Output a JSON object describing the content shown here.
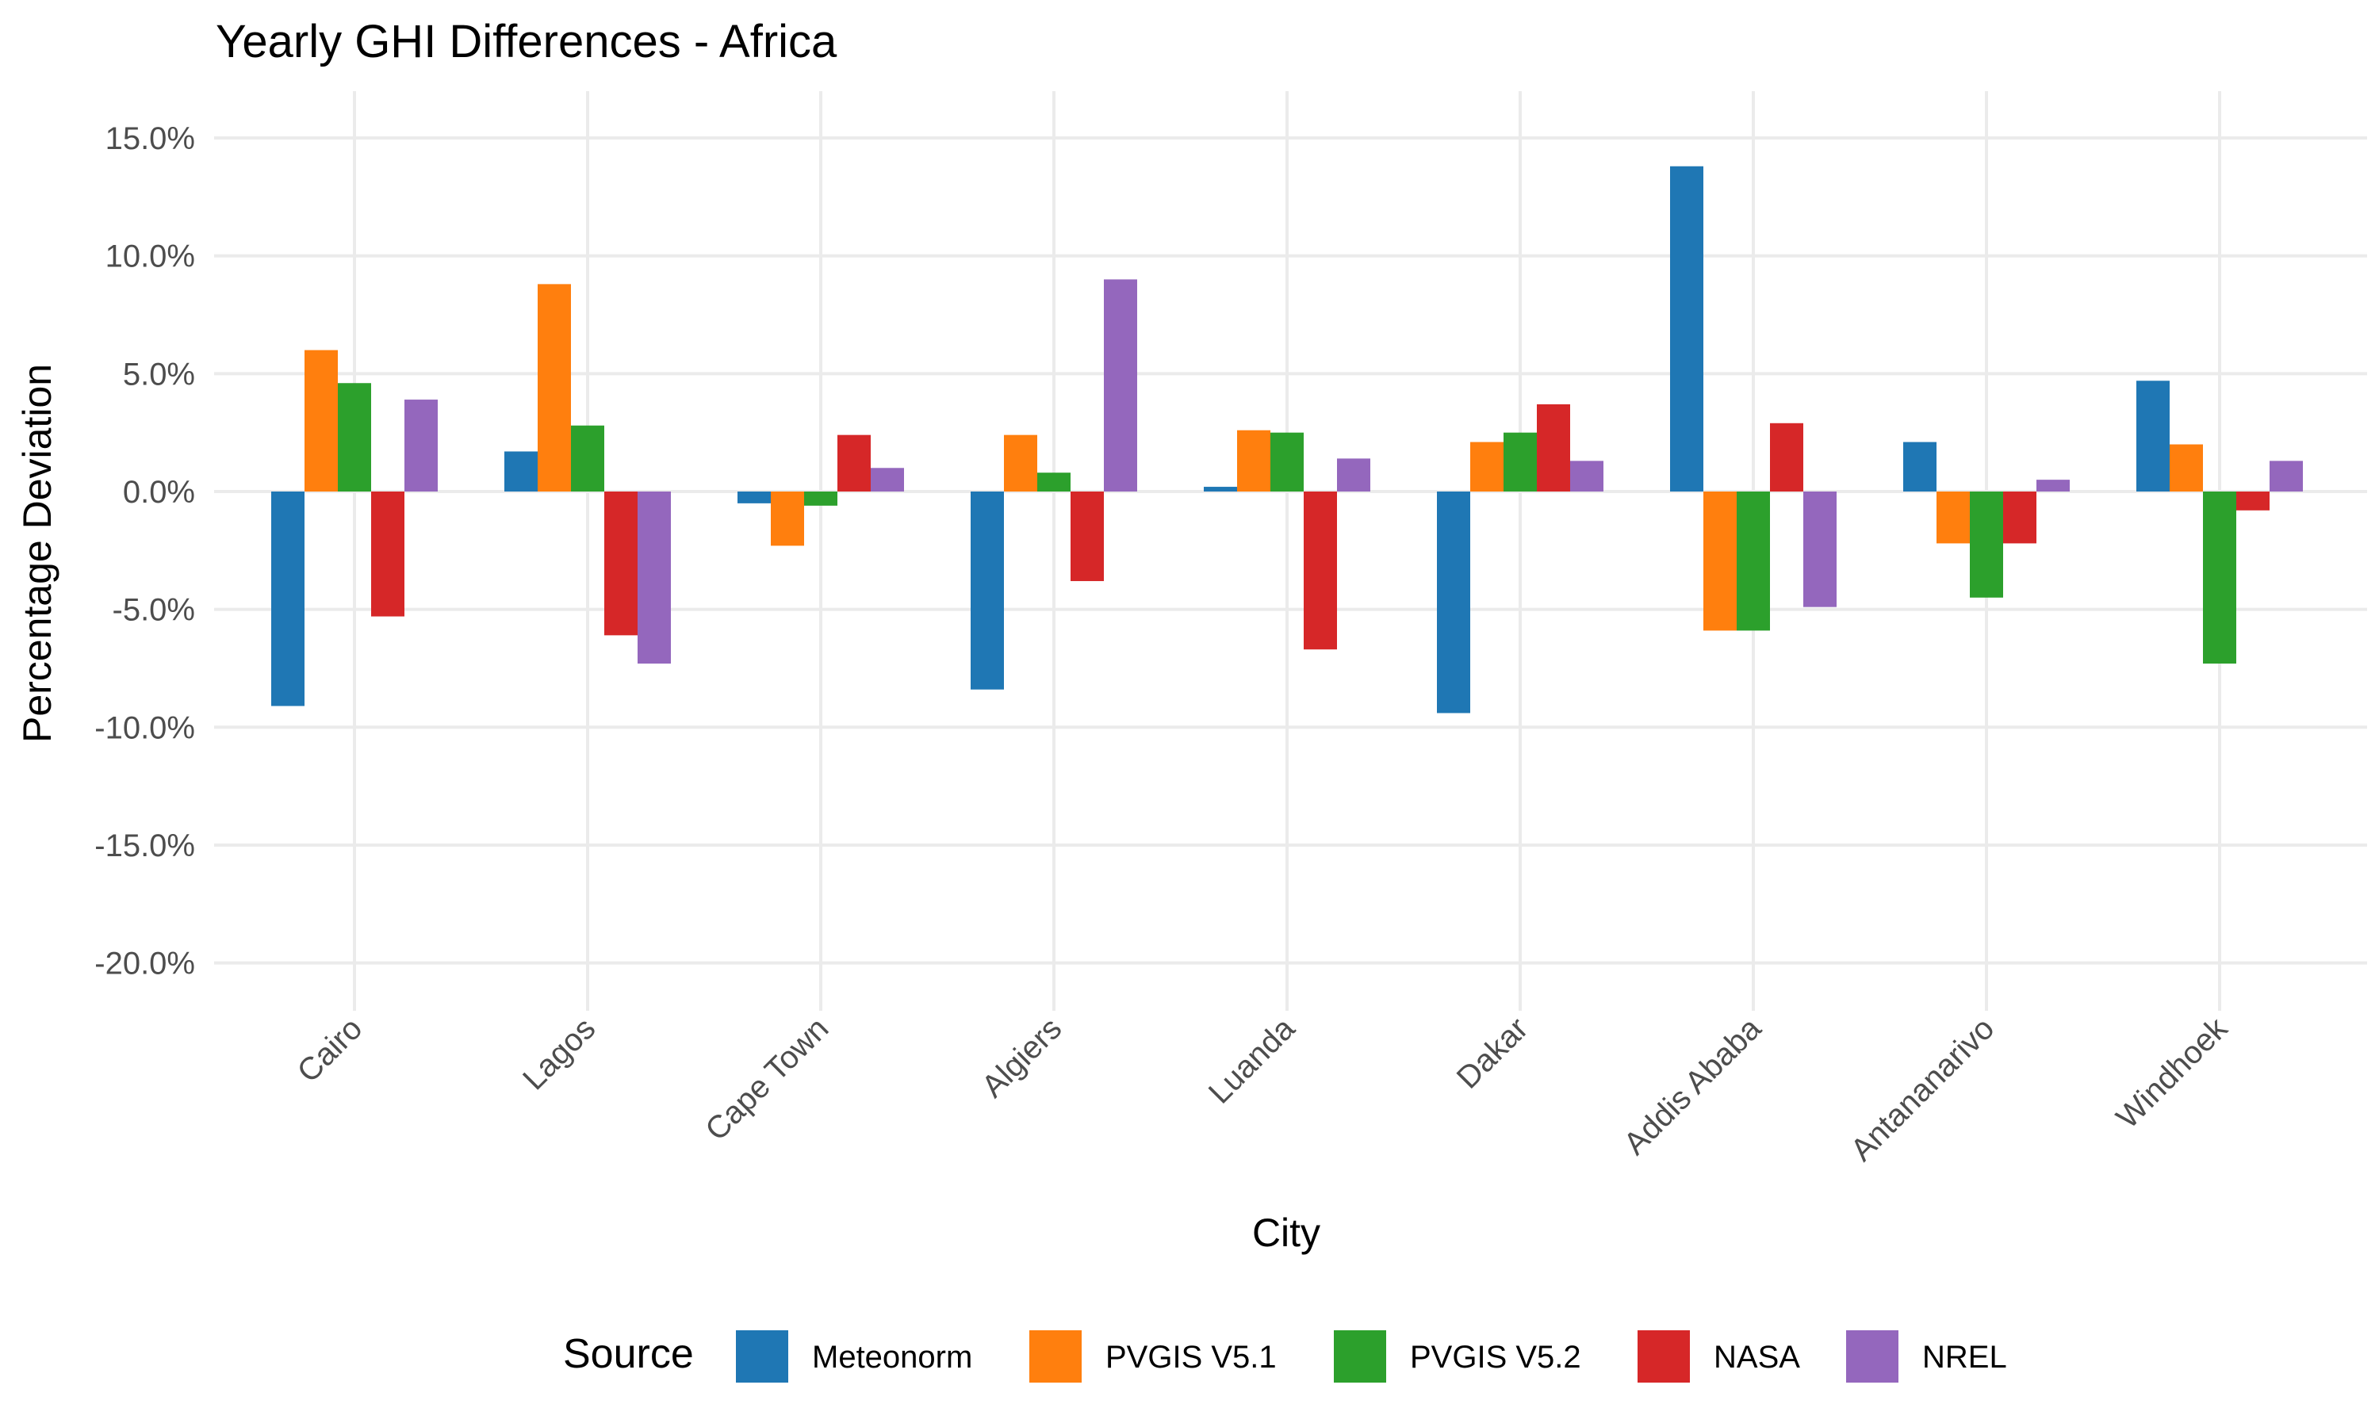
{
  "chart_data": {
    "type": "bar",
    "title": "Yearly GHI Differences - Africa",
    "xlabel": "City",
    "ylabel": "Percentage Deviation",
    "categories": [
      "Cairo",
      "Lagos",
      "Cape Town",
      "Algiers",
      "Luanda",
      "Dakar",
      "Addis Ababa",
      "Antananarivo",
      "Windhoek"
    ],
    "ylim": [
      -21.0,
      16.5
    ],
    "yticks": [
      15,
      10,
      5,
      0,
      -5,
      -10,
      -15,
      -20
    ],
    "ytick_labels": [
      "15.0%",
      "10.0%",
      "5.0%",
      "0.0%",
      "-5.0%",
      "-10.0%",
      "-15.0%",
      "-20.0%"
    ],
    "grid": true,
    "legend": {
      "title": "Source",
      "position": "bottom"
    },
    "series": [
      {
        "name": "Meteonorm",
        "color": "#1f77b4",
        "values": [
          -9.1,
          1.7,
          -0.5,
          -8.4,
          0.2,
          -9.4,
          13.8,
          2.1,
          4.7
        ]
      },
      {
        "name": "PVGIS V5.1",
        "color": "#ff7f0e",
        "values": [
          6.0,
          8.8,
          -2.3,
          2.4,
          2.6,
          2.1,
          -5.9,
          -2.2,
          2.0
        ]
      },
      {
        "name": "PVGIS V5.2",
        "color": "#2ca02c",
        "values": [
          4.6,
          2.8,
          -0.6,
          0.8,
          2.5,
          2.5,
          -5.9,
          -4.5,
          -7.3
        ]
      },
      {
        "name": "NASA",
        "color": "#d62728",
        "values": [
          -5.3,
          -6.1,
          2.4,
          -3.8,
          -6.7,
          3.7,
          2.9,
          -2.2,
          -0.8
        ]
      },
      {
        "name": "NREL",
        "color": "#9467bd",
        "values": [
          3.9,
          -7.3,
          1.0,
          9.0,
          1.4,
          1.3,
          -4.9,
          0.5,
          1.3
        ]
      }
    ]
  }
}
